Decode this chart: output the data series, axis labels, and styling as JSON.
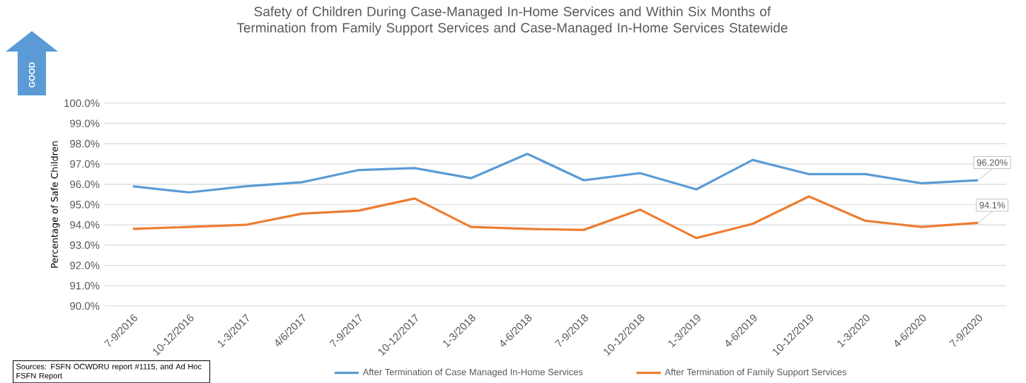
{
  "chart_data": {
    "type": "line",
    "title": "Safety of Children During Case-Managed In-Home Services and Within Six Months of Termination from Family Support Services and Case-Managed In-Home Services Statewide",
    "ylabel": "Percentage of Safe Children",
    "categories": [
      "7-9/2016",
      "10-12/2016",
      "1-3/2017",
      "4/6/2017",
      "7-9/2017",
      "10-12/2017",
      "1-3/2018",
      "4-6/2018",
      "7-9/2018",
      "10-12/2018",
      "1-3/2019",
      "4-6/2019",
      "10-12/2019",
      "1-3/2020",
      "4-6/2020",
      "7-9/2020"
    ],
    "series": [
      {
        "name": "After Termination of Case Managed In-Home Services",
        "color": "#5b9bd5",
        "values": [
          95.9,
          95.6,
          95.9,
          96.1,
          96.7,
          96.8,
          96.3,
          97.5,
          96.2,
          96.55,
          95.75,
          97.2,
          96.5,
          96.5,
          96.05,
          96.2
        ],
        "value_labels": [
          null,
          null,
          null,
          null,
          null,
          null,
          null,
          null,
          null,
          null,
          null,
          null,
          null,
          null,
          null,
          "96.20%"
        ]
      },
      {
        "name": "After Termination of Family Support Services",
        "color": "#ed7d31",
        "values": [
          93.8,
          93.9,
          94.0,
          94.55,
          94.7,
          95.3,
          93.9,
          93.8,
          93.75,
          94.75,
          93.35,
          94.05,
          95.4,
          94.2,
          93.9,
          94.1
        ],
        "value_labels": [
          null,
          null,
          null,
          null,
          null,
          null,
          null,
          null,
          null,
          null,
          null,
          null,
          null,
          null,
          null,
          "94.1%"
        ]
      }
    ],
    "ylim": [
      90,
      100
    ],
    "yticks": [
      {
        "value": 90,
        "label": "90.0%"
      },
      {
        "value": 91,
        "label": "91.0%"
      },
      {
        "value": 92,
        "label": "92.0%"
      },
      {
        "value": 93,
        "label": "93.0%"
      },
      {
        "value": 94,
        "label": "94.0%"
      },
      {
        "value": 95,
        "label": "95.0%"
      },
      {
        "value": 96,
        "label": "96.0%"
      },
      {
        "value": 97,
        "label": "97.0%"
      },
      {
        "value": 98,
        "label": "98.0%"
      },
      {
        "value": 99,
        "label": "99.0%"
      },
      {
        "value": 100,
        "label": "100.0%"
      }
    ],
    "grid": "y",
    "legend": "bottom",
    "marker": "none",
    "line_style": "solid",
    "annotations": [
      "GOOD",
      "Sources: FSFN OCWDRU report #1115, and Ad Hoc FSFN Report"
    ]
  }
}
